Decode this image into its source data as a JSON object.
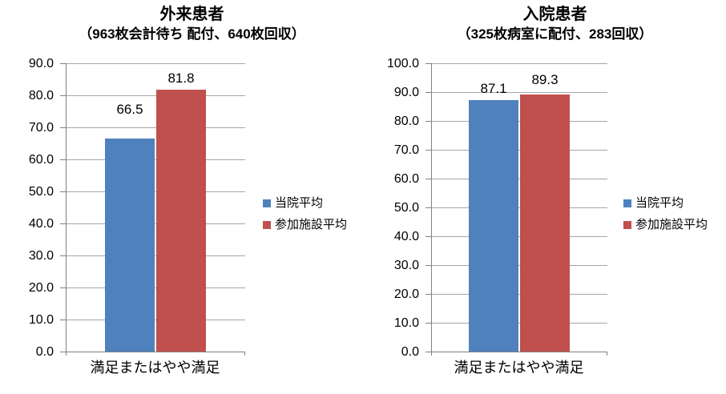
{
  "chart_data": [
    {
      "type": "bar",
      "title": "外来患者",
      "subtitle": "（963枚会計待ち 配付、640枚回収）",
      "categories": [
        "満足またはやや満足"
      ],
      "series": [
        {
          "name": "当院平均",
          "values": [
            66.5
          ],
          "color": "#4F81BD"
        },
        {
          "name": "参加施設平均",
          "values": [
            81.8
          ],
          "color": "#C0504D"
        }
      ],
      "data_labels": [
        "66.5",
        "81.8"
      ],
      "ylim": [
        0,
        90
      ],
      "ytick_step": 10,
      "ytick_labels": [
        "0.0",
        "10.0",
        "20.0",
        "30.0",
        "40.0",
        "50.0",
        "60.0",
        "70.0",
        "80.0",
        "90.0"
      ],
      "grid": true,
      "legend_position": "right"
    },
    {
      "type": "bar",
      "title": "入院患者",
      "subtitle": "（325枚病室に配付、283回収）",
      "categories": [
        "満足またはやや満足"
      ],
      "series": [
        {
          "name": "当院平均",
          "values": [
            87.1
          ],
          "color": "#4F81BD"
        },
        {
          "name": "参加施設平均",
          "values": [
            89.3
          ],
          "color": "#C0504D"
        }
      ],
      "data_labels": [
        "87.1",
        "89.3"
      ],
      "ylim": [
        0,
        100
      ],
      "ytick_step": 10,
      "ytick_labels": [
        "0.0",
        "10.0",
        "20.0",
        "30.0",
        "40.0",
        "50.0",
        "60.0",
        "70.0",
        "80.0",
        "90.0",
        "100.0"
      ],
      "grid": true,
      "legend_position": "right"
    }
  ],
  "colors": {
    "series1": "#4F81BD",
    "series2": "#C0504D",
    "gridline": "#A6A6A6",
    "axis": "#808080",
    "text": "#000000",
    "background": "#FFFFFF"
  }
}
